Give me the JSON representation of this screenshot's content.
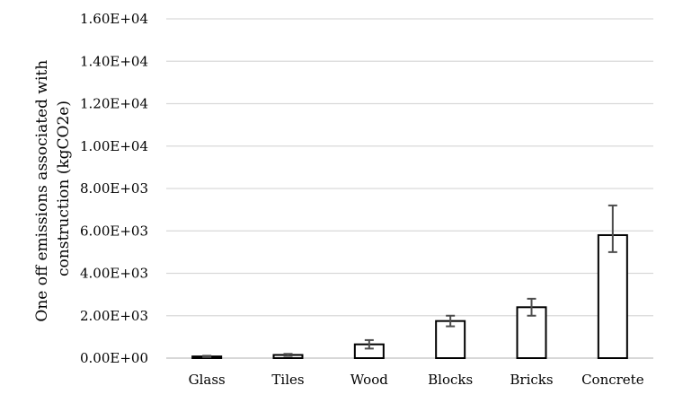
{
  "chart_data": {
    "type": "bar",
    "categories": [
      "Glass",
      "Tiles",
      "Wood",
      "Blocks",
      "Bricks",
      "Concrete"
    ],
    "values": [
      80,
      150,
      650,
      1750,
      2400,
      5800
    ],
    "error_low": [
      30,
      50,
      200,
      250,
      400,
      800
    ],
    "error_high": [
      30,
      50,
      200,
      250,
      400,
      1400
    ],
    "ylabel": [
      "One off emissions associated with",
      "construction (kgCO2e)"
    ],
    "ylim": [
      0,
      16000
    ],
    "yticks": [
      0,
      2000,
      4000,
      6000,
      8000,
      10000,
      12000,
      14000,
      16000
    ],
    "ytick_labels": [
      "0.00E+00",
      "2.00E+03",
      "4.00E+03",
      "6.00E+03",
      "8.00E+03",
      "1.00E+04",
      "1.20E+04",
      "1.40E+04",
      "1.60E+04"
    ],
    "grid": true,
    "legend": "none",
    "colors": {
      "bar_fill": "#ffffff",
      "bar_stroke": "#000000",
      "error_bar": "#4d4d4d",
      "grid": "#d9d9d9"
    }
  }
}
